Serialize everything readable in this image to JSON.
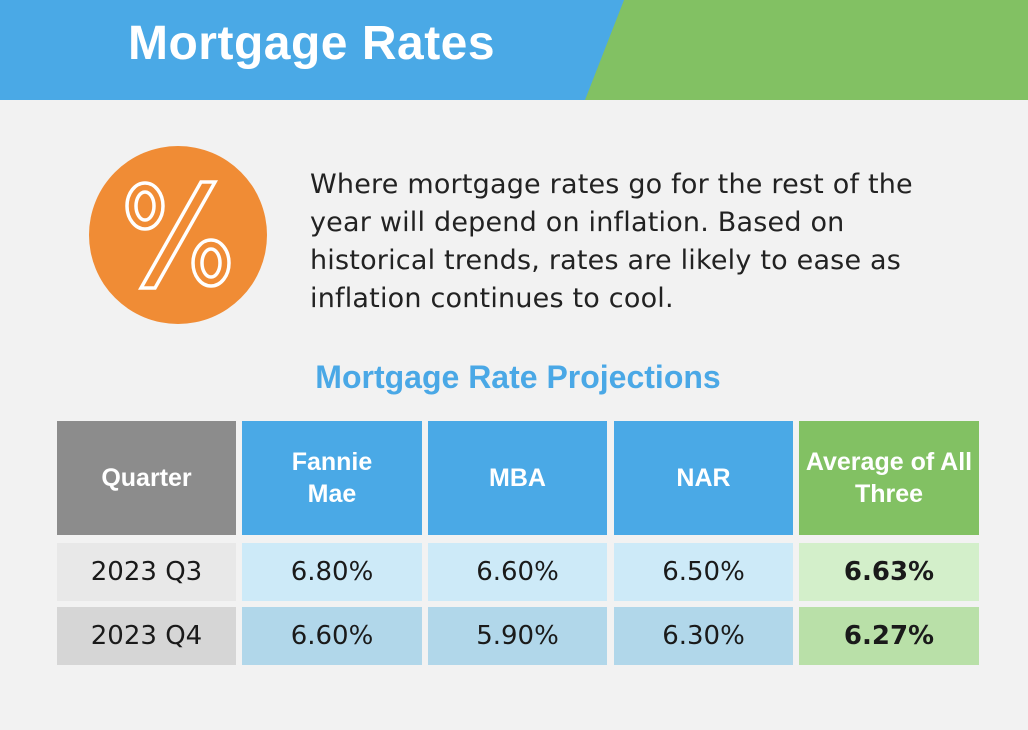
{
  "header": {
    "title": "Mortgage Rates",
    "colors": {
      "blue": "#4aa9e6",
      "green": "#82c163"
    }
  },
  "badge": {
    "icon": "percent-icon",
    "color": "#f08c35"
  },
  "intro_text": "Where mortgage rates go for the rest of the year will depend on inflation. Based on historical trends, rates are likely to ease as inflation continues to cool.",
  "table": {
    "title": "Mortgage Rate Projections",
    "headers": [
      "Quarter",
      "Fannie Mae",
      "MBA",
      "NAR",
      "Average of All Three"
    ],
    "rows": [
      {
        "quarter": "2023 Q3",
        "fannie_mae": "6.80%",
        "mba": "6.60%",
        "nar": "6.50%",
        "average": "6.63%"
      },
      {
        "quarter": "2023 Q4",
        "fannie_mae": "6.60%",
        "mba": "5.90%",
        "nar": "6.30%",
        "average": "6.27%"
      }
    ],
    "colors": {
      "quarter_header": "#8c8c8c",
      "source_header": "#4aa9e6",
      "average_header": "#82c163"
    }
  }
}
